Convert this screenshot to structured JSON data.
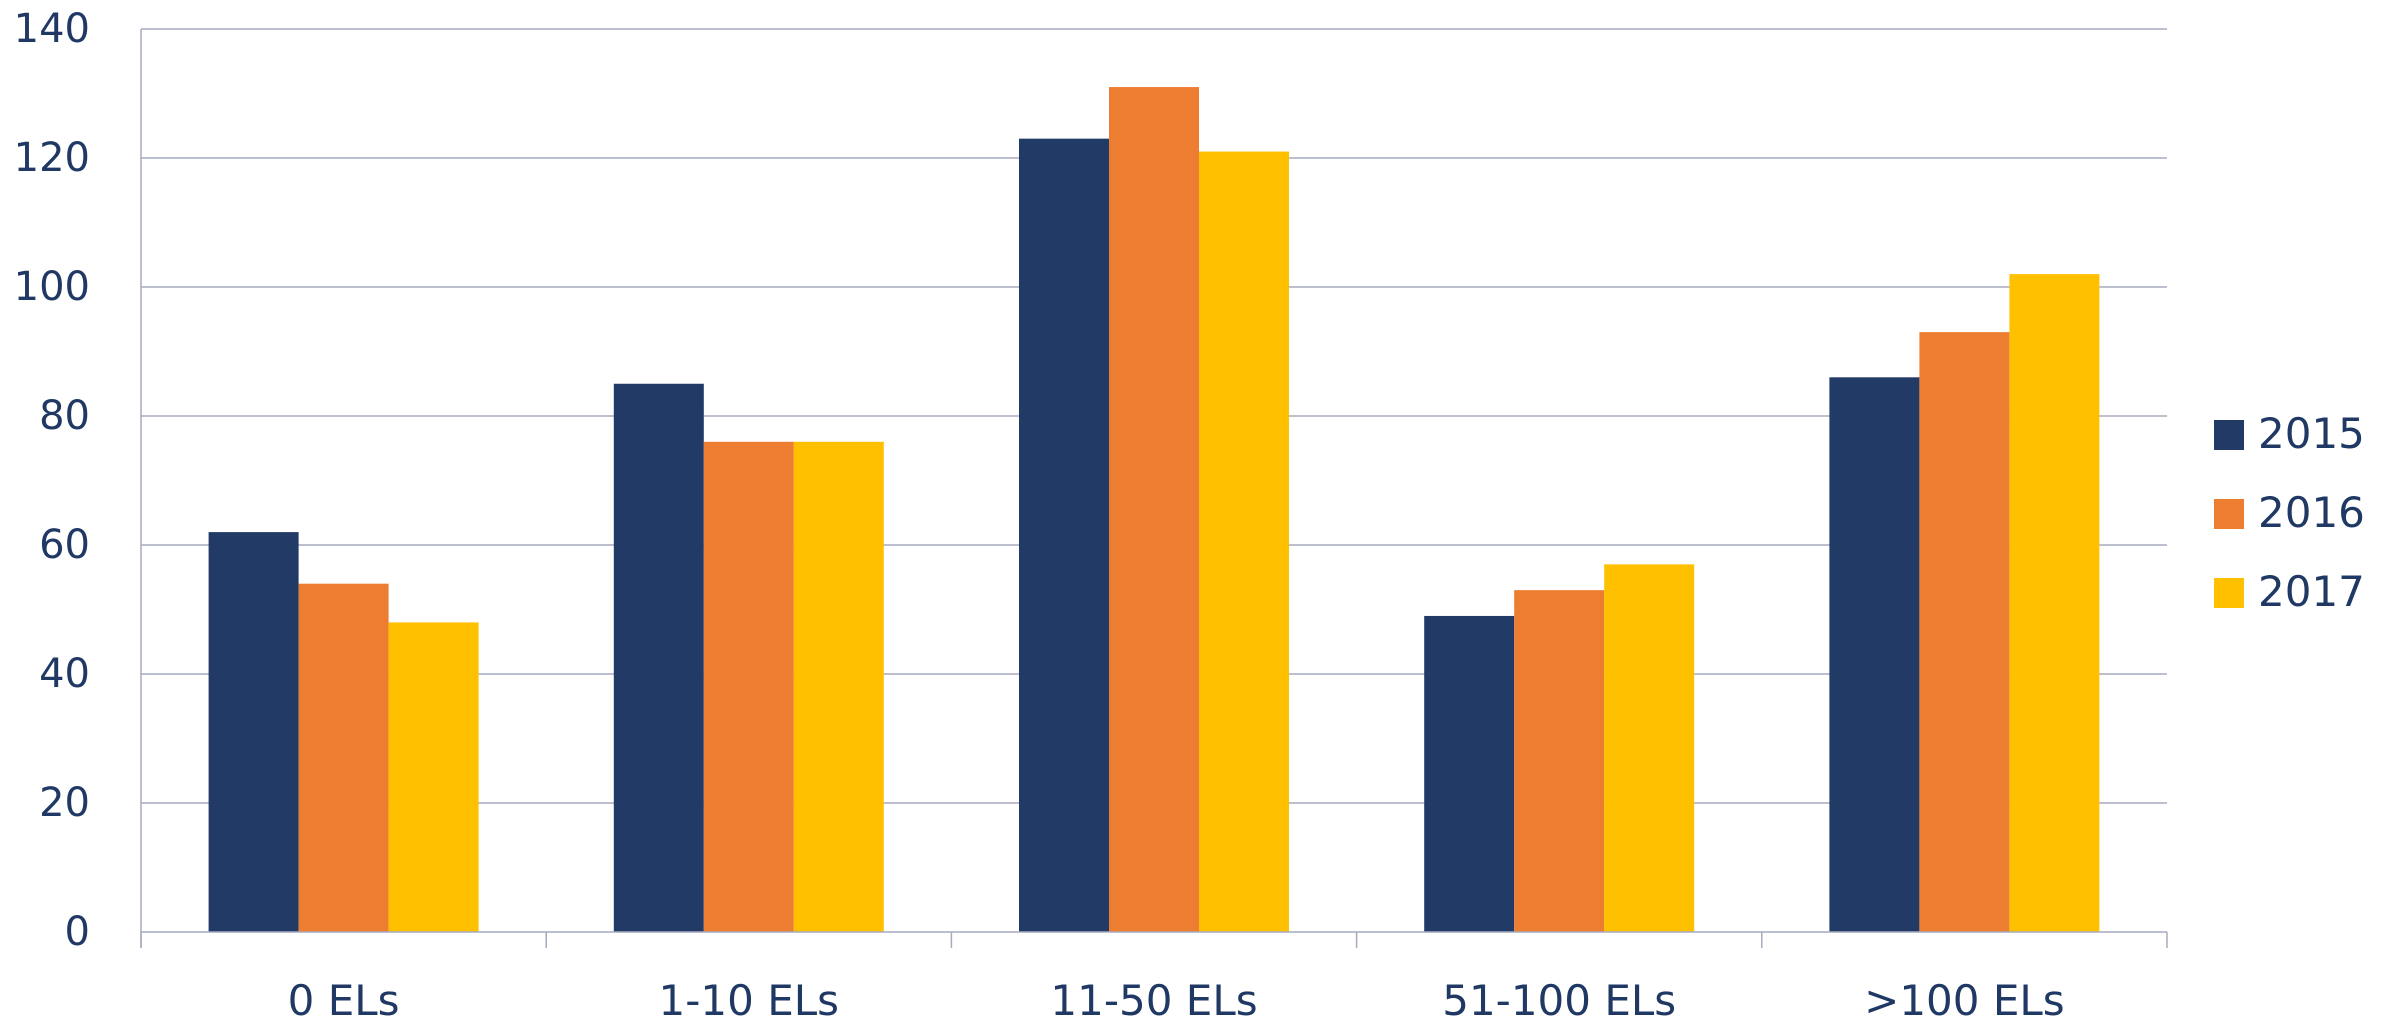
{
  "chart_data": {
    "type": "bar",
    "title": "",
    "xlabel": "",
    "ylabel": "",
    "categories": [
      "0 ELs",
      "1-10 ELs",
      "11-50 ELs",
      "51-100 ELs",
      ">100 ELs"
    ],
    "series": [
      {
        "name": "2015",
        "color": "#223A66",
        "values": [
          62,
          85,
          123,
          49,
          86
        ]
      },
      {
        "name": "2016",
        "color": "#ED7D31",
        "values": [
          54,
          76,
          131,
          53,
          93
        ]
      },
      {
        "name": "2017",
        "color": "#FFC000",
        "values": [
          48,
          76,
          121,
          57,
          102
        ]
      }
    ],
    "ylim": [
      0,
      140
    ],
    "yticks": [
      "0",
      "20",
      "40",
      "60",
      "80",
      "100",
      "120",
      "140"
    ],
    "grid": true,
    "legend_position": "right",
    "colors": {
      "text": "#1F3864",
      "grid": "#A6ACBE",
      "axis": "#A6ACBE"
    }
  }
}
